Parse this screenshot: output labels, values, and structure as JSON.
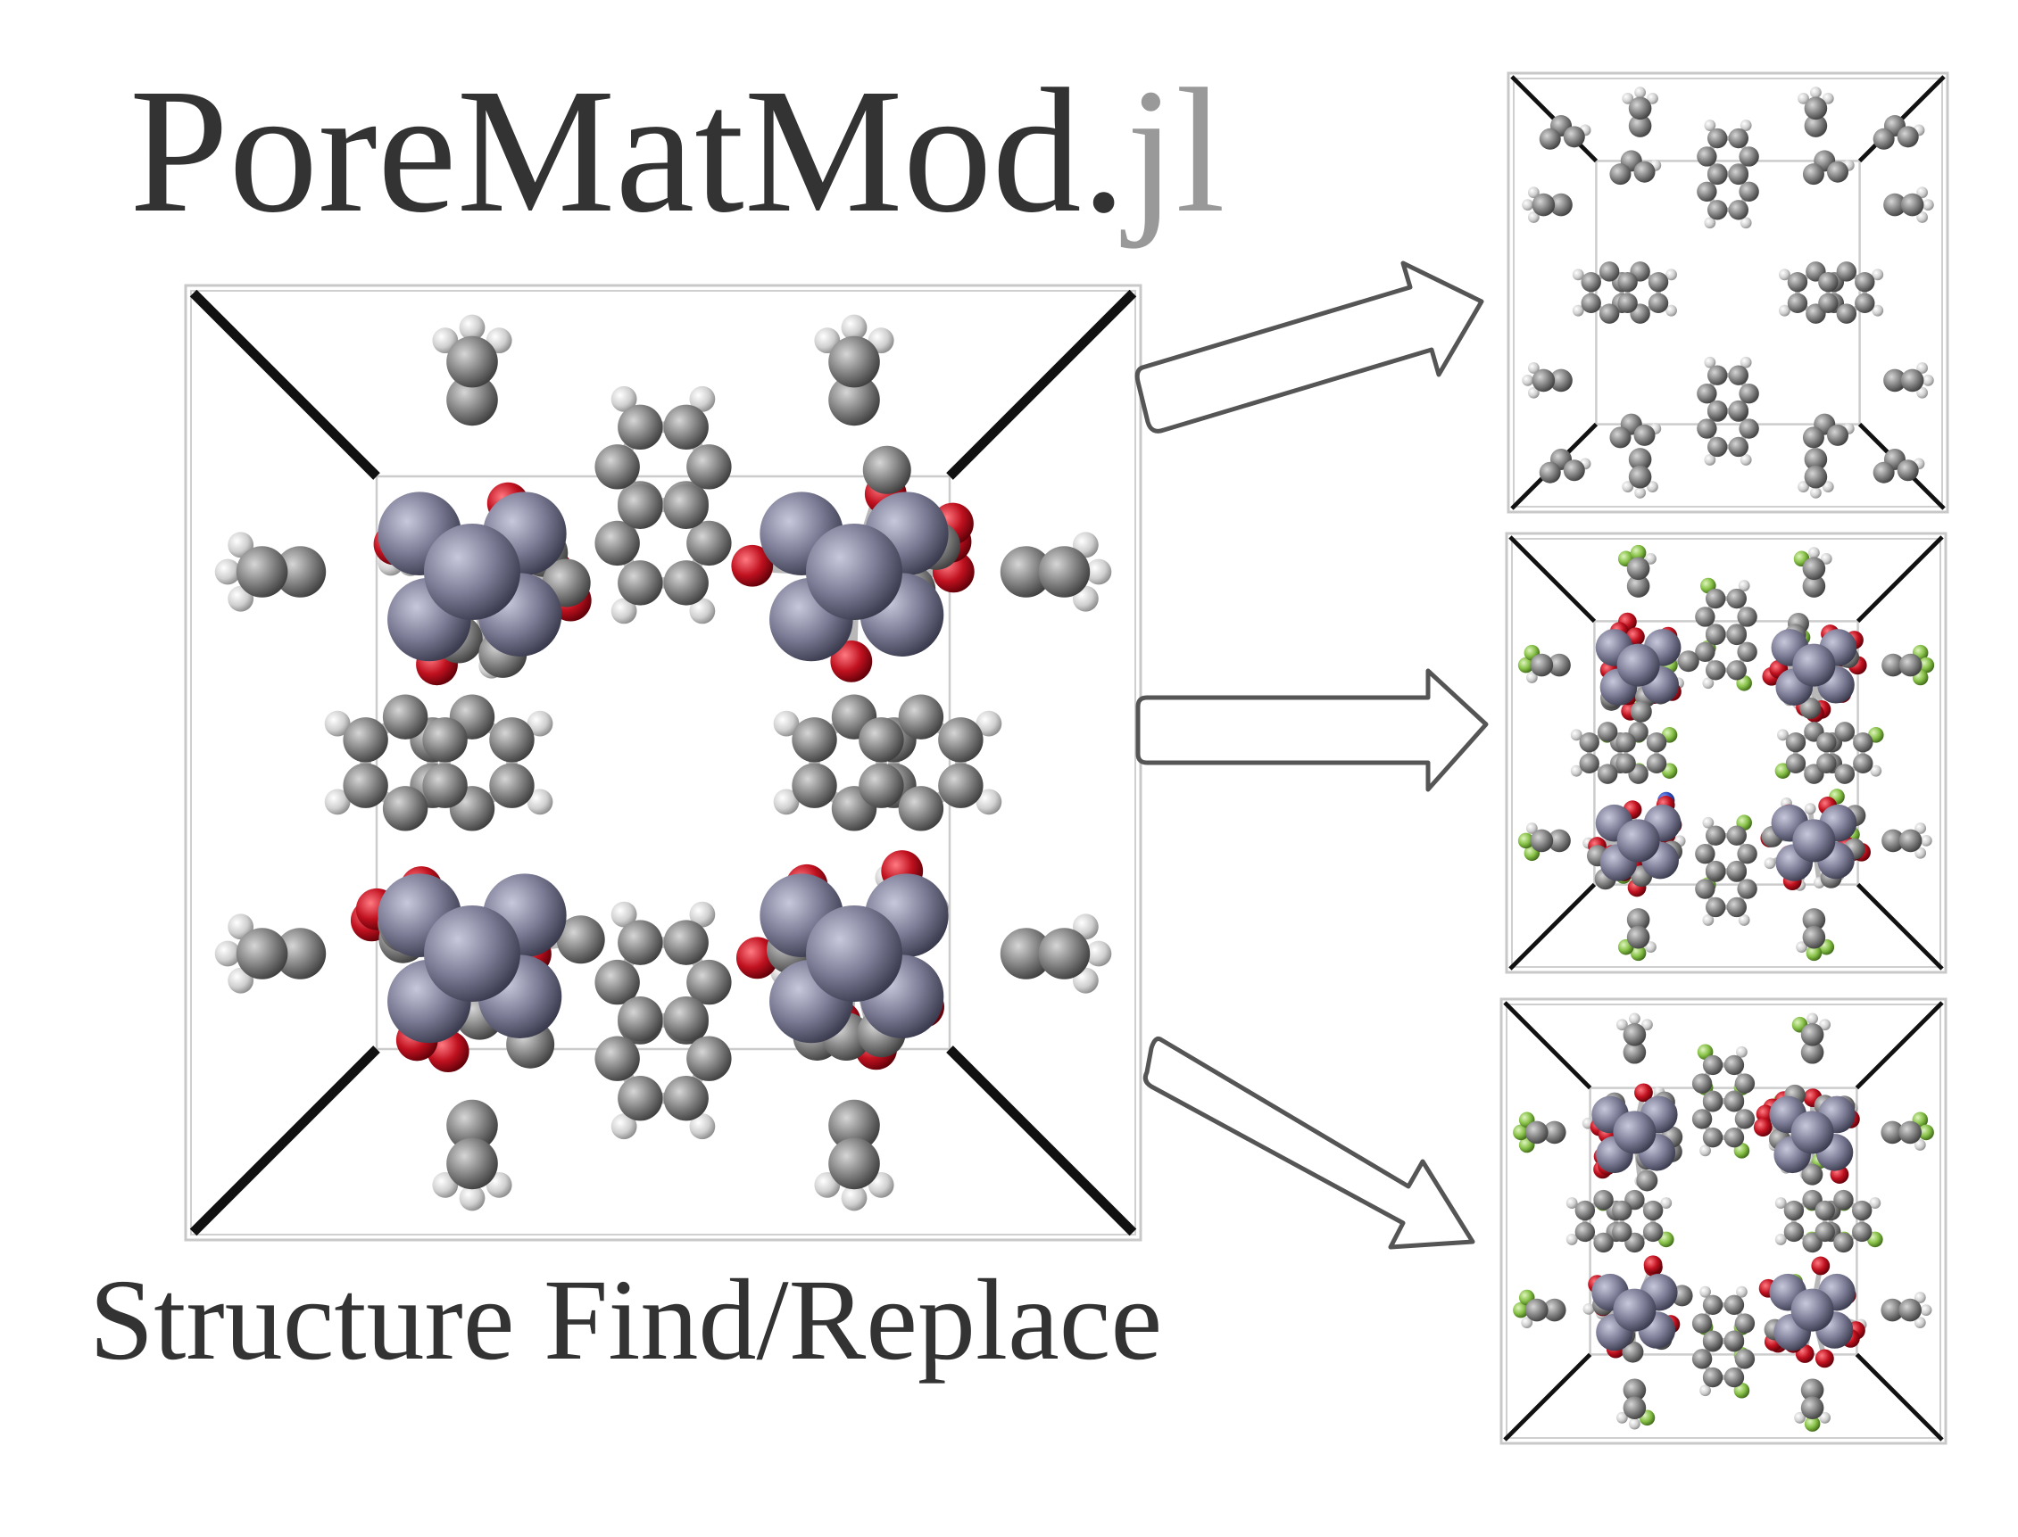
{
  "title": {
    "main": "PoreMatMod.",
    "ext": "jl"
  },
  "subtitle": "Structure Find/Replace",
  "colors": {
    "text": "#333333",
    "ext_text": "#999999",
    "carbon": "#7a7a7a",
    "hydrogen": "#d4d4d4",
    "oxygen": "#c0111f",
    "zinc": "#7c7c96",
    "nitrogen": "#2f4fbf",
    "fluorine": "#86c046",
    "arrow": "#555555"
  },
  "panels": [
    {
      "name": "parent-structure",
      "atoms": [
        "carbon",
        "hydrogen",
        "oxygen",
        "zinc"
      ]
    },
    {
      "name": "result-structure-1",
      "atoms": [
        "carbon",
        "hydrogen"
      ]
    },
    {
      "name": "result-structure-2",
      "atoms": [
        "carbon",
        "hydrogen",
        "oxygen",
        "zinc",
        "nitrogen",
        "fluorine"
      ]
    },
    {
      "name": "result-structure-3",
      "atoms": [
        "carbon",
        "hydrogen",
        "oxygen",
        "zinc",
        "fluorine"
      ]
    }
  ]
}
